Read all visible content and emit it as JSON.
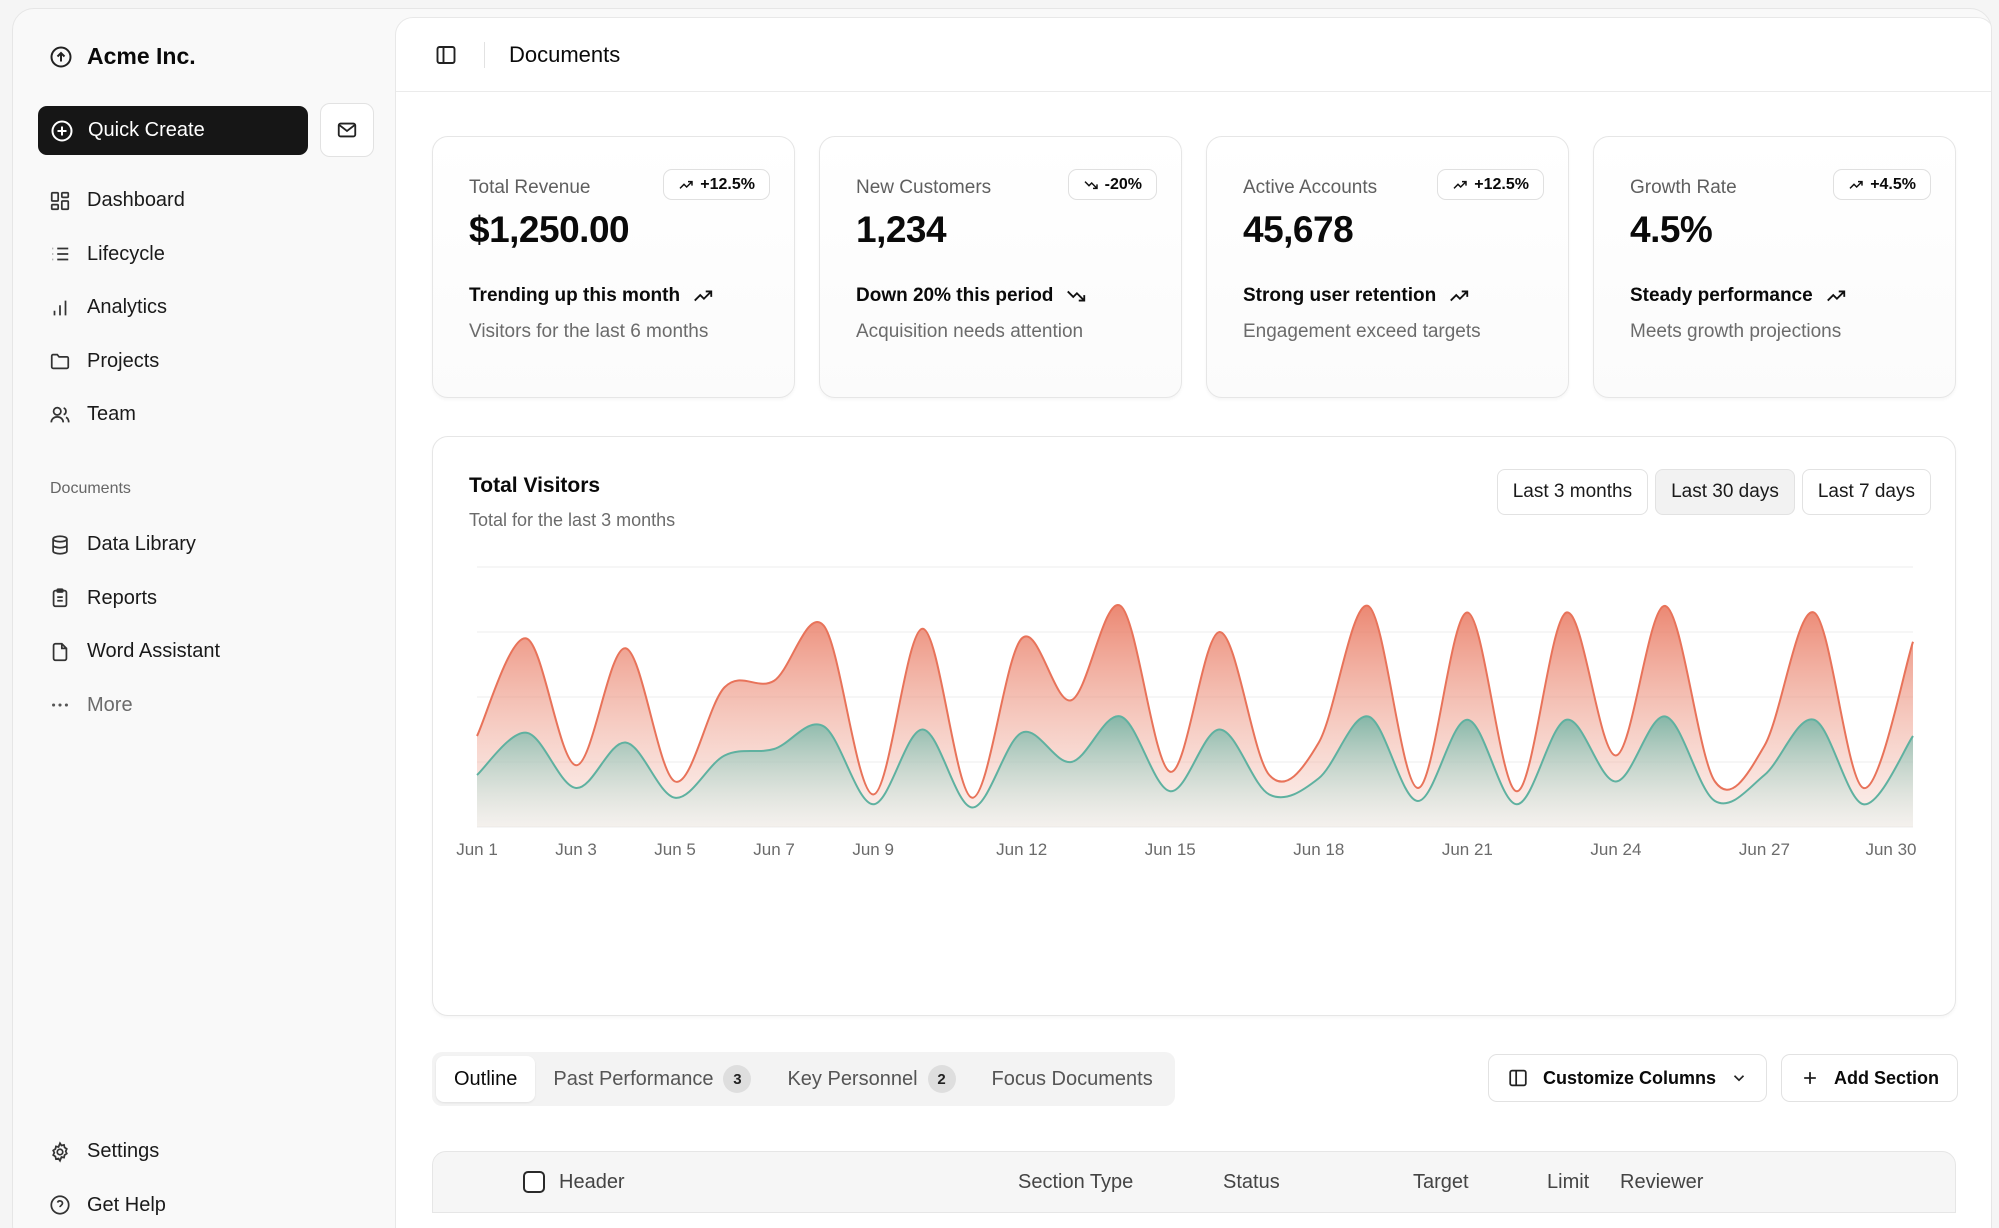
{
  "brand": {
    "name": "Acme Inc."
  },
  "sidebar": {
    "quick_create": "Quick Create",
    "primary": [
      {
        "label": "Dashboard",
        "icon": "dashboard-icon"
      },
      {
        "label": "Lifecycle",
        "icon": "list-icon"
      },
      {
        "label": "Analytics",
        "icon": "bar-chart-icon"
      },
      {
        "label": "Projects",
        "icon": "folder-icon"
      },
      {
        "label": "Team",
        "icon": "users-icon"
      }
    ],
    "documents_label": "Documents",
    "documents": [
      {
        "label": "Data Library",
        "icon": "database-icon"
      },
      {
        "label": "Reports",
        "icon": "clipboard-icon"
      },
      {
        "label": "Word Assistant",
        "icon": "file-icon"
      },
      {
        "label": "More",
        "icon": "ellipsis-icon"
      }
    ],
    "footer": [
      {
        "label": "Settings",
        "icon": "gear-icon"
      },
      {
        "label": "Get Help",
        "icon": "help-icon"
      }
    ]
  },
  "header": {
    "title": "Documents"
  },
  "cards": [
    {
      "label": "Total Revenue",
      "value": "$1,250.00",
      "badge": "+12.5%",
      "badge_dir": "up",
      "trend": "Trending up this month",
      "trend_dir": "up",
      "sub": "Visitors for the last 6 months"
    },
    {
      "label": "New Customers",
      "value": "1,234",
      "badge": "-20%",
      "badge_dir": "down",
      "trend": "Down 20% this period",
      "trend_dir": "down",
      "sub": "Acquisition needs attention"
    },
    {
      "label": "Active Accounts",
      "value": "45,678",
      "badge": "+12.5%",
      "badge_dir": "up",
      "trend": "Strong user retention",
      "trend_dir": "up",
      "sub": "Engagement exceed targets"
    },
    {
      "label": "Growth Rate",
      "value": "4.5%",
      "badge": "+4.5%",
      "badge_dir": "up",
      "trend": "Steady performance",
      "trend_dir": "up",
      "sub": "Meets growth projections"
    }
  ],
  "visitors": {
    "title": "Total Visitors",
    "subtitle": "Total for the last 3 months",
    "ranges": [
      "Last 3 months",
      "Last 30 days",
      "Last 7 days"
    ],
    "active_range": 1
  },
  "chart_data": {
    "type": "area",
    "x": [
      "Jun 1",
      "Jun 2",
      "Jun 3",
      "Jun 4",
      "Jun 5",
      "Jun 6",
      "Jun 7",
      "Jun 8",
      "Jun 9",
      "Jun 10",
      "Jun 11",
      "Jun 12",
      "Jun 13",
      "Jun 14",
      "Jun 15",
      "Jun 16",
      "Jun 17",
      "Jun 18",
      "Jun 19",
      "Jun 20",
      "Jun 21",
      "Jun 22",
      "Jun 23",
      "Jun 24",
      "Jun 25",
      "Jun 26",
      "Jun 27",
      "Jun 28",
      "Jun 29",
      "Jun 30"
    ],
    "tick_labels": [
      "Jun 1",
      "Jun 3",
      "Jun 5",
      "Jun 7",
      "Jun 9",
      "Jun 12",
      "Jun 15",
      "Jun 18",
      "Jun 21",
      "Jun 24",
      "Jun 27",
      "Jun 30"
    ],
    "series": [
      {
        "color": "#e8735a",
        "values": [
          140,
          290,
          95,
          275,
          70,
          215,
          225,
          310,
          50,
          305,
          45,
          290,
          195,
          340,
          85,
          300,
          80,
          130,
          340,
          60,
          330,
          55,
          330,
          110,
          340,
          70,
          125,
          330,
          60,
          285
        ]
      },
      {
        "color": "#5fb1a0",
        "values": [
          80,
          145,
          60,
          130,
          45,
          110,
          120,
          155,
          35,
          150,
          30,
          145,
          100,
          170,
          55,
          150,
          50,
          75,
          170,
          40,
          165,
          35,
          165,
          70,
          170,
          40,
          80,
          165,
          35,
          140
        ]
      }
    ],
    "ylim": [
      0,
      400
    ],
    "grid": true
  },
  "tabs": [
    {
      "label": "Outline",
      "count": ""
    },
    {
      "label": "Past Performance",
      "count": "3"
    },
    {
      "label": "Key Personnel",
      "count": "2"
    },
    {
      "label": "Focus Documents",
      "count": ""
    }
  ],
  "actions": {
    "customize": "Customize Columns",
    "add": "Add Section"
  },
  "table": {
    "columns": [
      "Header",
      "Section Type",
      "Status",
      "Target",
      "Limit",
      "Reviewer"
    ]
  }
}
